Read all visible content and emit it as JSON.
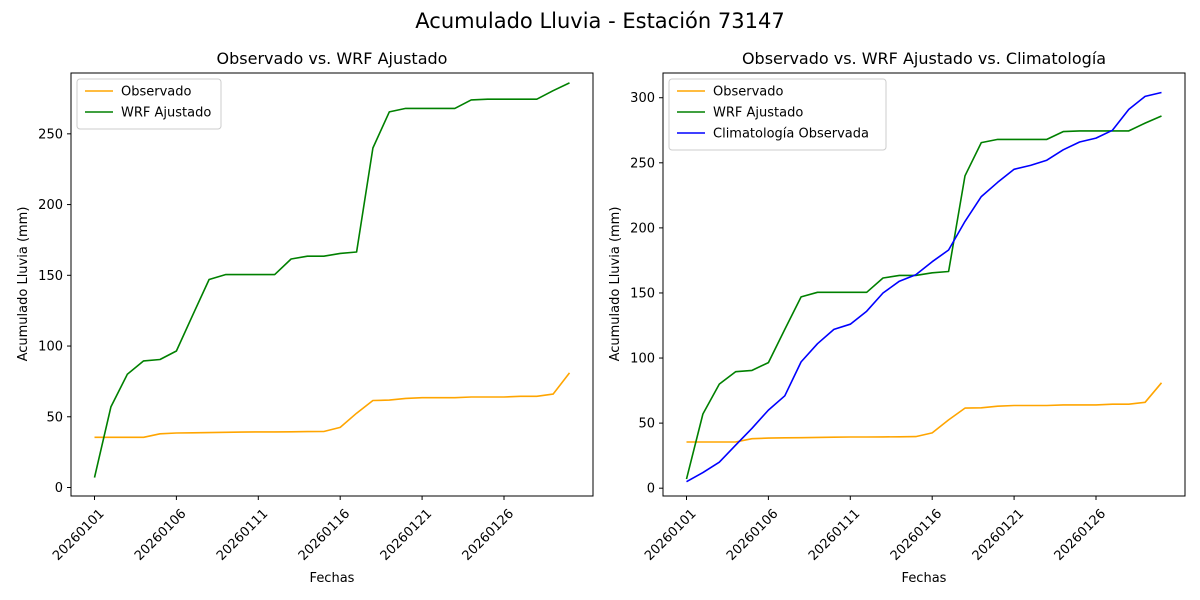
{
  "figure": {
    "suptitle": "Acumulado Lluvia - Estación 73147"
  },
  "chart_data": [
    {
      "type": "line",
      "title": "Observado vs. WRF Ajustado",
      "xlabel": "Fechas",
      "ylabel": "Acumulado Lluvia (mm)",
      "x": [
        "20260101",
        "20260102",
        "20260103",
        "20260104",
        "20260105",
        "20260106",
        "20260107",
        "20260108",
        "20260109",
        "20260110",
        "20260111",
        "20260112",
        "20260113",
        "20260114",
        "20260115",
        "20260116",
        "20260117",
        "20260118",
        "20260119",
        "20260120",
        "20260121",
        "20260122",
        "20260123",
        "20260124",
        "20260125",
        "20260126",
        "20260127",
        "20260128",
        "20260129",
        "20260130"
      ],
      "xticks": [
        "20260101",
        "20260106",
        "20260111",
        "20260116",
        "20260121",
        "20260126"
      ],
      "yticks": [
        0,
        50,
        100,
        150,
        200,
        250
      ],
      "ylim": [
        -6,
        293
      ],
      "grid": false,
      "legend": "upper left",
      "series": [
        {
          "name": "Observado",
          "color": "#ffa500",
          "values": [
            35.5,
            35.5,
            35.5,
            35.5,
            38,
            38.5,
            38.7,
            38.8,
            39,
            39.2,
            39.3,
            39.3,
            39.4,
            39.5,
            39.6,
            42.5,
            52.5,
            61.5,
            61.8,
            63,
            63.5,
            63.5,
            63.5,
            64,
            64,
            64,
            64.5,
            64.5,
            66,
            81
          ]
        },
        {
          "name": "WRF Ajustado",
          "color": "#008000",
          "values": [
            7,
            57,
            80,
            89.5,
            90.5,
            96.5,
            122,
            147,
            150.5,
            150.5,
            150.5,
            150.5,
            161.5,
            163.5,
            163.5,
            165.5,
            166.5,
            240,
            265.5,
            268,
            268,
            268,
            268,
            274,
            274.5,
            274.5,
            274.5,
            274.5,
            280.5,
            286
          ]
        }
      ]
    },
    {
      "type": "line",
      "title": "Observado vs. WRF Ajustado vs. Climatología",
      "xlabel": "Fechas",
      "ylabel": "Acumulado Lluvia (mm)",
      "x": [
        "20260101",
        "20260102",
        "20260103",
        "20260104",
        "20260105",
        "20260106",
        "20260107",
        "20260108",
        "20260109",
        "20260110",
        "20260111",
        "20260112",
        "20260113",
        "20260114",
        "20260115",
        "20260116",
        "20260117",
        "20260118",
        "20260119",
        "20260120",
        "20260121",
        "20260122",
        "20260123",
        "20260124",
        "20260125",
        "20260126",
        "20260127",
        "20260128",
        "20260129",
        "20260130"
      ],
      "xticks": [
        "20260101",
        "20260106",
        "20260111",
        "20260116",
        "20260121",
        "20260126"
      ],
      "yticks": [
        0,
        50,
        100,
        150,
        200,
        250,
        300
      ],
      "ylim": [
        -6,
        319
      ],
      "grid": false,
      "legend": "upper left",
      "series": [
        {
          "name": "Observado",
          "color": "#ffa500",
          "values": [
            35.5,
            35.5,
            35.5,
            35.5,
            38,
            38.5,
            38.7,
            38.8,
            39,
            39.2,
            39.3,
            39.3,
            39.4,
            39.5,
            39.6,
            42.5,
            52.5,
            61.5,
            61.8,
            63,
            63.5,
            63.5,
            63.5,
            64,
            64,
            64,
            64.5,
            64.5,
            66,
            81
          ]
        },
        {
          "name": "WRF Ajustado",
          "color": "#008000",
          "values": [
            7,
            57,
            80,
            89.5,
            90.5,
            96.5,
            122,
            147,
            150.5,
            150.5,
            150.5,
            150.5,
            161.5,
            163.5,
            163.5,
            165.5,
            166.5,
            240,
            265.5,
            268,
            268,
            268,
            268,
            274,
            274.5,
            274.5,
            274.5,
            274.5,
            280.5,
            286
          ]
        },
        {
          "name": "Climatología Observada",
          "color": "#0000ff",
          "values": [
            5,
            12,
            20,
            33,
            46,
            60,
            71,
            97,
            111,
            122,
            126,
            136,
            150,
            159,
            164,
            174,
            183,
            205,
            224,
            235,
            245,
            248,
            252,
            260,
            266,
            269,
            275,
            291,
            301,
            304
          ]
        }
      ]
    }
  ]
}
